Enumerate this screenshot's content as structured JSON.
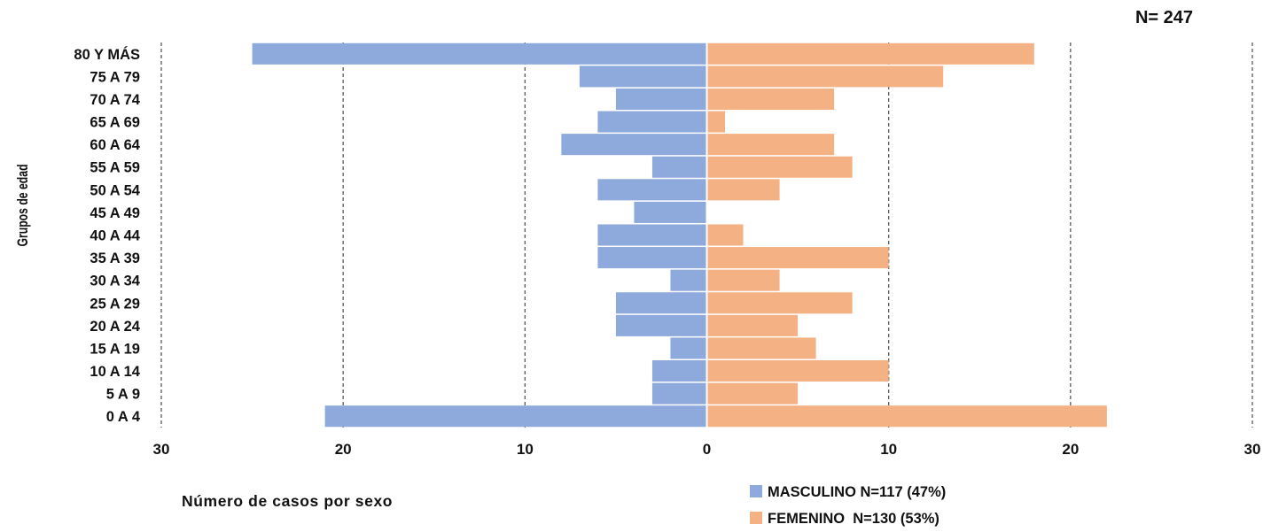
{
  "chart_data": {
    "type": "bar",
    "orientation": "horizontal",
    "style": "population-pyramid",
    "total_label": "N= 247",
    "ylabel": "Grupos de edad",
    "xlabel": "Número de casos por sexo",
    "xlim": [
      -30,
      30
    ],
    "xticks": [
      -30,
      -20,
      -10,
      0,
      10,
      20,
      30
    ],
    "xtick_labels": [
      "30",
      "20",
      "10",
      "0",
      "10",
      "20",
      "30"
    ],
    "grid": "vertical-dashed",
    "legend_position": "bottom-right",
    "categories": [
      "80 Y MÁS",
      "75 A 79",
      "70 A 74",
      "65 A 69",
      "60 A 64",
      "55 A 59",
      "50 A 54",
      "45 A 49",
      "40 A 44",
      "35 A 39",
      "30 A 34",
      "25 A 29",
      "20 A 24",
      "15 A 19",
      "10 A 14",
      "5 A 9",
      "0 A 4"
    ],
    "series": [
      {
        "name": "MASCULINO N=117 (47%)",
        "side": "left",
        "color": "#8eaadc",
        "values": [
          25,
          7,
          5,
          6,
          8,
          3,
          6,
          4,
          6,
          6,
          2,
          5,
          5,
          2,
          3,
          3,
          21
        ]
      },
      {
        "name": "FEMENINO  N=130 (53%)",
        "side": "right",
        "color": "#f4b183",
        "values": [
          18,
          13,
          7,
          1,
          7,
          8,
          4,
          0,
          2,
          10,
          4,
          8,
          5,
          6,
          10,
          5,
          22
        ]
      }
    ]
  }
}
